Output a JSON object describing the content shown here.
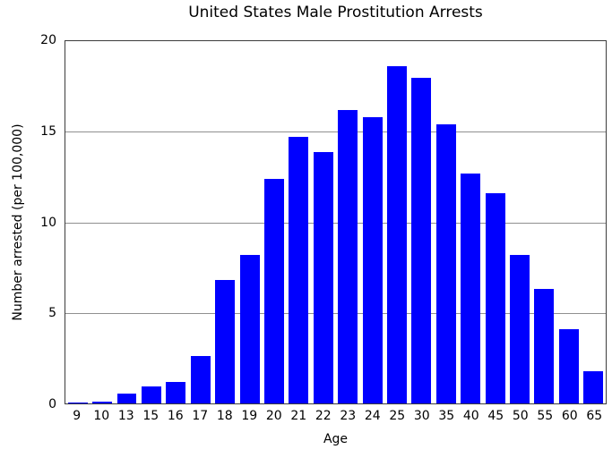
{
  "figure": {
    "background": "#ffffff",
    "axis_color": "#3c3c3c",
    "grid_color": "#8f8f8f",
    "text_color": "#000000"
  },
  "chart_data": {
    "type": "bar",
    "title": "United States Male Prostitution Arrests",
    "xlabel": "Age",
    "ylabel": "Number arrested (per 100,000)",
    "categories": [
      "9",
      "10",
      "13",
      "15",
      "16",
      "17",
      "18",
      "19",
      "20",
      "21",
      "22",
      "23",
      "24",
      "25",
      "30",
      "35",
      "40",
      "45",
      "50",
      "55",
      "60",
      "65"
    ],
    "values": [
      0.05,
      0.1,
      0.55,
      0.95,
      1.2,
      2.6,
      6.8,
      8.2,
      12.4,
      14.7,
      13.9,
      16.2,
      15.8,
      18.6,
      18.0,
      15.4,
      12.7,
      11.6,
      8.2,
      6.3,
      4.1,
      1.8
    ],
    "ylim": [
      0,
      20
    ],
    "yticks": [
      0,
      5,
      10,
      15,
      20
    ],
    "bar_color": "#0000ff",
    "grid": "horizontal",
    "legend": "none"
  }
}
